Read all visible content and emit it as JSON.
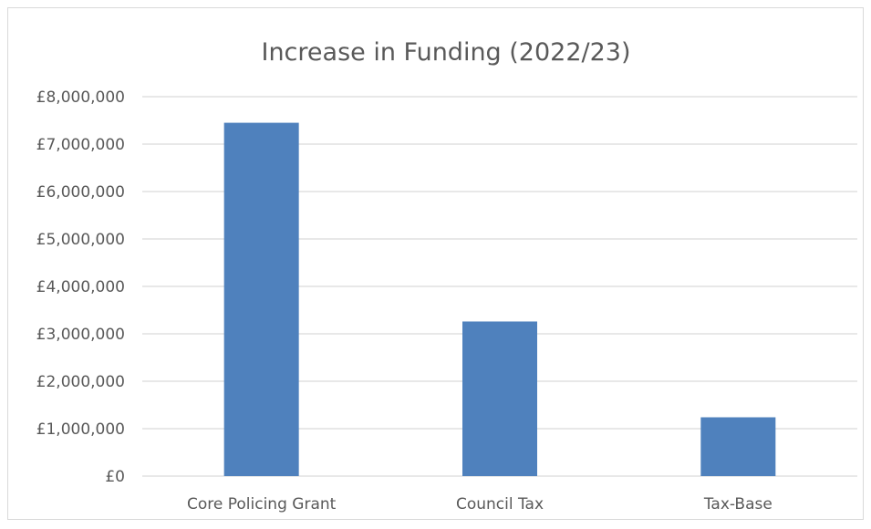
{
  "chart_data": {
    "type": "bar",
    "title": "Increase in Funding (2022/23)",
    "categories": [
      "Core Policing Grant",
      "Council Tax",
      "Tax-Base"
    ],
    "values": [
      7450000,
      3260000,
      1240000
    ],
    "ylim": [
      0,
      8000000
    ],
    "yticks": [
      {
        "value": 0,
        "label": "£0"
      },
      {
        "value": 1000000,
        "label": "£1,000,000"
      },
      {
        "value": 2000000,
        "label": "£2,000,000"
      },
      {
        "value": 3000000,
        "label": "£3,000,000"
      },
      {
        "value": 4000000,
        "label": "£4,000,000"
      },
      {
        "value": 5000000,
        "label": "£5,000,000"
      },
      {
        "value": 6000000,
        "label": "£6,000,000"
      },
      {
        "value": 7000000,
        "label": "£7,000,000"
      },
      {
        "value": 8000000,
        "label": "£8,000,000"
      }
    ],
    "grid": true,
    "legend": "none",
    "bar_color": "#4f81bd",
    "grid_color": "#d9d9d9"
  }
}
